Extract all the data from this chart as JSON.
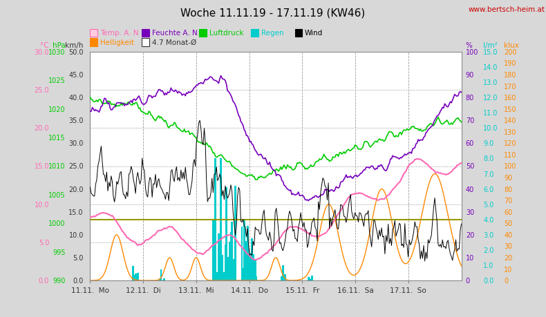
{
  "title": "Woche 11.11.19 - 17.11.19 (KW46)",
  "watermark": "www.bertsch-heim.at",
  "bg_color": "#d8d8d8",
  "plot_bg": "#ffffff",
  "x_labels": [
    "11.11.  Mo",
    "12.11.  Di",
    "13.11.  Mi",
    "14.11.  Do",
    "15.11.  Fr",
    "16.11.  Sa",
    "17.11.  So"
  ],
  "n_points": 336,
  "temp_color": "#ff69b4",
  "humidity_color": "#7700bb",
  "pressure_color": "#00cc00",
  "rain_color": "#00cccc",
  "wind_color": "#000000",
  "sunshine_color": "#ff8800",
  "monat_color": "#999900",
  "temp_min": 0.0,
  "temp_max": 30.0,
  "pressure_min": 990,
  "pressure_max": 1030,
  "wind_max": 50.0,
  "humidity_min": 0,
  "humidity_max": 100,
  "rain_max": 15.0,
  "klux_max": 200
}
